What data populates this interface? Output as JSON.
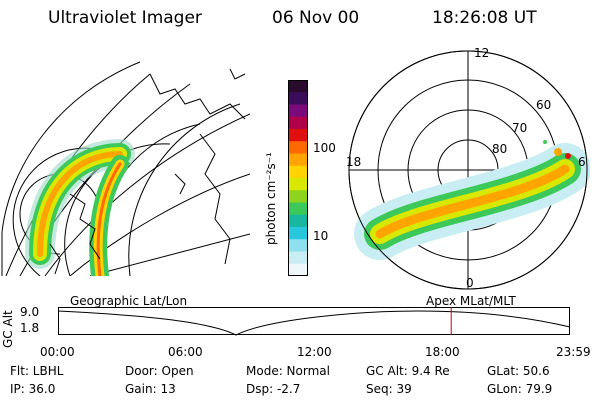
{
  "header": {
    "instrument": "Ultraviolet Imager",
    "date": "06 Nov 00",
    "time": "18:26:08 UT"
  },
  "colorbar": {
    "unit_label": "photon cm⁻²s⁻¹",
    "ticks": [
      "100",
      "10"
    ],
    "colors": [
      "#2a0a2e",
      "#3a0c5a",
      "#7b0a7b",
      "#b0004a",
      "#e01010",
      "#ff6a00",
      "#ffa400",
      "#ffd400",
      "#d8e800",
      "#8ed41c",
      "#3cc85a",
      "#18b8a0",
      "#28c8dc",
      "#8ee0ee",
      "#c8eef4",
      "#eef8fb"
    ]
  },
  "left_map": {
    "caption": "Geographic Lat/Lon"
  },
  "polar_map": {
    "caption": "Apex MLat/MLT",
    "mlt_labels": [
      "12",
      "18",
      "6",
      "0"
    ],
    "lat_labels": [
      "60",
      "70",
      "80"
    ]
  },
  "alt_plot": {
    "axis_label": "GC Alt",
    "y_ticks": [
      "9.0",
      "1.8"
    ],
    "x_ticks": [
      "00:00",
      "06:00",
      "12:00",
      "18:00",
      "23:59"
    ],
    "marker_color": "#cc0000",
    "current_time_fraction": 0.768
  },
  "status": {
    "flt": "Flt: LBHL",
    "ip": "IP: 36.0",
    "door": "Door: Open",
    "gain": "Gain: 13",
    "mode": "Mode: Normal",
    "dsp": "Dsp:   -2.7",
    "gcalt": "GC Alt: 9.4 Re",
    "seq": "Seq: 39",
    "glat": "GLat: 50.6",
    "glon": "GLon: 79.9"
  }
}
